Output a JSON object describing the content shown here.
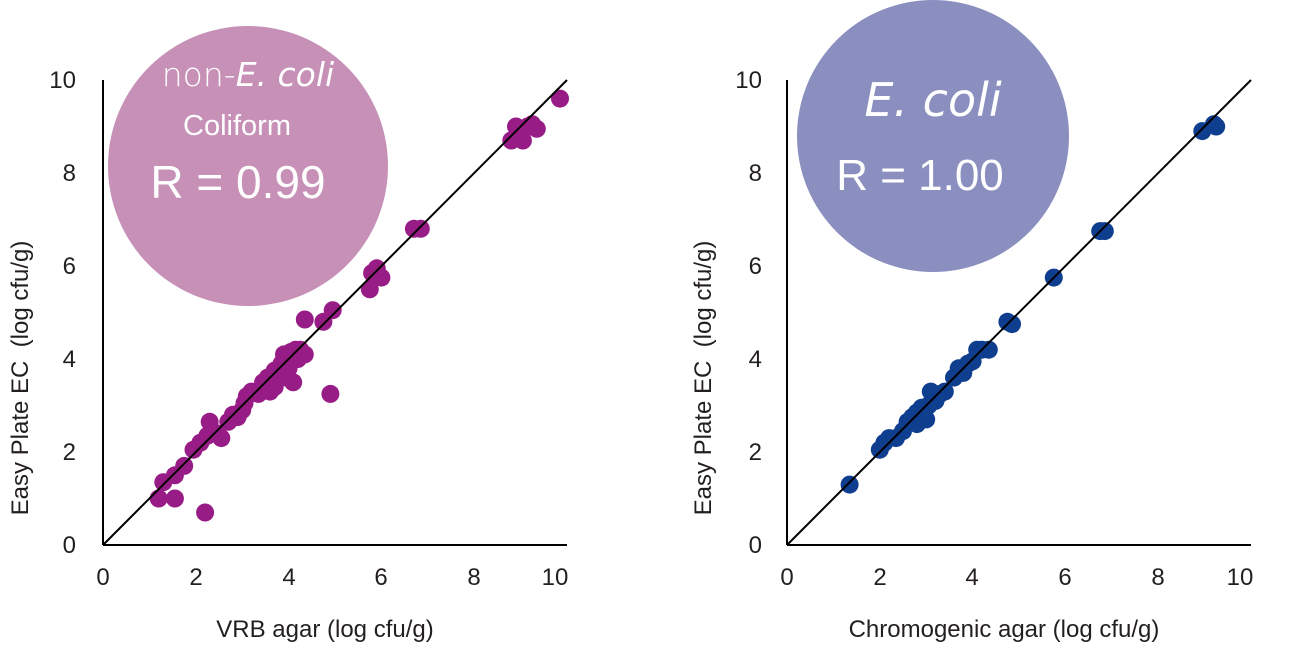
{
  "chart_data": [
    {
      "type": "scatter",
      "xlabel": "VRB agar (log cfu/g)",
      "ylabel": "Easy Plate EC  (log cfu/g)",
      "xlim": [
        0,
        10
      ],
      "ylim": [
        0,
        10
      ],
      "x_ticks": [
        "0",
        "2",
        "4",
        "6",
        "8",
        "10"
      ],
      "y_ticks": [
        "0",
        "2",
        "4",
        "6",
        "8",
        "10"
      ],
      "grid": false,
      "legend": "none",
      "reference_line": "y = x",
      "badge": {
        "title_plain": "non-",
        "title_italic": "E. coli",
        "subtitle": "Coliform",
        "stat": "R = 0.99",
        "color": "#c790b7"
      },
      "marker_color": "#981c85",
      "points": [
        [
          1.2,
          1.0
        ],
        [
          1.3,
          1.35
        ],
        [
          1.55,
          1.5
        ],
        [
          1.55,
          1.0
        ],
        [
          1.75,
          1.7
        ],
        [
          1.95,
          2.05
        ],
        [
          2.1,
          2.2
        ],
        [
          2.2,
          0.7
        ],
        [
          2.25,
          2.35
        ],
        [
          2.3,
          2.65
        ],
        [
          2.45,
          2.4
        ],
        [
          2.55,
          2.3
        ],
        [
          2.7,
          2.65
        ],
        [
          2.8,
          2.8
        ],
        [
          2.9,
          2.75
        ],
        [
          3.0,
          2.9
        ],
        [
          3.05,
          3.05
        ],
        [
          3.1,
          3.2
        ],
        [
          3.2,
          3.3
        ],
        [
          3.35,
          3.25
        ],
        [
          3.45,
          3.5
        ],
        [
          3.55,
          3.6
        ],
        [
          3.6,
          3.3
        ],
        [
          3.7,
          3.4
        ],
        [
          3.7,
          3.75
        ],
        [
          3.8,
          3.7
        ],
        [
          3.85,
          3.9
        ],
        [
          3.9,
          4.1
        ],
        [
          3.95,
          3.6
        ],
        [
          4.0,
          3.8
        ],
        [
          4.05,
          4.15
        ],
        [
          4.1,
          3.5
        ],
        [
          4.15,
          4.2
        ],
        [
          4.2,
          4.0
        ],
        [
          4.25,
          4.2
        ],
        [
          4.35,
          4.1
        ],
        [
          4.35,
          4.85
        ],
        [
          4.75,
          4.8
        ],
        [
          4.9,
          3.25
        ],
        [
          4.95,
          5.05
        ],
        [
          5.75,
          5.5
        ],
        [
          5.8,
          5.85
        ],
        [
          5.9,
          5.95
        ],
        [
          6.0,
          5.75
        ],
        [
          6.7,
          6.8
        ],
        [
          6.85,
          6.8
        ],
        [
          8.8,
          8.7
        ],
        [
          8.9,
          9.0
        ],
        [
          9.05,
          8.7
        ],
        [
          9.15,
          9.0
        ],
        [
          9.25,
          9.05
        ],
        [
          9.35,
          8.95
        ],
        [
          9.85,
          9.6
        ]
      ]
    },
    {
      "type": "scatter",
      "xlabel": "Chromogenic agar (log cfu/g)",
      "ylabel": "Easy Plate EC  (log cfu/g)",
      "xlim": [
        0,
        10
      ],
      "ylim": [
        0,
        10
      ],
      "x_ticks": [
        "0",
        "2",
        "4",
        "6",
        "8",
        "10"
      ],
      "y_ticks": [
        "0",
        "2",
        "4",
        "6",
        "8",
        "10"
      ],
      "grid": false,
      "legend": "none",
      "reference_line": "y = x",
      "badge": {
        "title_plain": "",
        "title_italic": "E. coli",
        "subtitle": "",
        "stat": "R = 1.00",
        "color": "#8b8fc0"
      },
      "marker_color": "#0f3e8f",
      "points": [
        [
          1.35,
          1.3
        ],
        [
          2.0,
          2.05
        ],
        [
          2.1,
          2.2
        ],
        [
          2.2,
          2.3
        ],
        [
          2.35,
          2.3
        ],
        [
          2.5,
          2.45
        ],
        [
          2.6,
          2.65
        ],
        [
          2.7,
          2.75
        ],
        [
          2.8,
          2.6
        ],
        [
          2.8,
          2.85
        ],
        [
          2.9,
          2.95
        ],
        [
          3.0,
          2.7
        ],
        [
          3.05,
          3.0
        ],
        [
          3.1,
          3.3
        ],
        [
          3.2,
          3.1
        ],
        [
          3.3,
          3.25
        ],
        [
          3.4,
          3.3
        ],
        [
          3.6,
          3.6
        ],
        [
          3.7,
          3.8
        ],
        [
          3.8,
          3.7
        ],
        [
          3.9,
          3.9
        ],
        [
          4.0,
          3.95
        ],
        [
          4.1,
          4.2
        ],
        [
          4.2,
          4.2
        ],
        [
          4.35,
          4.2
        ],
        [
          4.75,
          4.8
        ],
        [
          4.85,
          4.75
        ],
        [
          5.75,
          5.75
        ],
        [
          6.75,
          6.75
        ],
        [
          6.85,
          6.75
        ],
        [
          8.95,
          8.9
        ],
        [
          9.2,
          9.05
        ],
        [
          9.25,
          9.0
        ]
      ]
    }
  ]
}
